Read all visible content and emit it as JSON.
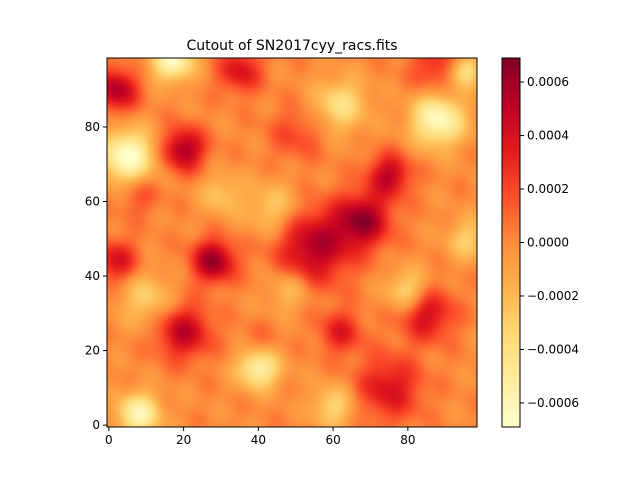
{
  "chart_data": {
    "type": "heatmap",
    "title": "Cutout of SN2017cyy_racs.fits",
    "xlabel": "",
    "ylabel": "",
    "xlim": [
      -0.5,
      98.5
    ],
    "ylim": [
      -0.5,
      98.5
    ],
    "x_ticks": [
      0,
      20,
      40,
      60,
      80
    ],
    "x_tick_labels": [
      "0",
      "20",
      "40",
      "60",
      "80"
    ],
    "y_ticks": [
      0,
      20,
      40,
      60,
      80
    ],
    "y_tick_labels": [
      "0",
      "20",
      "40",
      "60",
      "80"
    ],
    "origin": "lower",
    "colormap": "YlOrRd",
    "colormap_stops": [
      "#ffffcc",
      "#ffeda0",
      "#fed976",
      "#feb24c",
      "#fd8d3c",
      "#fc4e2a",
      "#e31a1c",
      "#bd0026",
      "#800026"
    ],
    "colorbar": {
      "vmin": -0.00069,
      "vmax": 0.00069,
      "ticks": [
        -0.0006,
        -0.0004,
        -0.0002,
        0.0,
        0.0002,
        0.0004,
        0.0006
      ],
      "tick_labels": [
        "−0.0006",
        "−0.0004",
        "−0.0002",
        "0.0000",
        "0.0002",
        "0.0004",
        "0.0006"
      ]
    },
    "grid": false,
    "features": [
      {
        "x": 28,
        "y": 44,
        "amp": 0.00062,
        "sigma": 4
      },
      {
        "x": 55,
        "y": 48,
        "amp": 0.00055,
        "sigma": 7
      },
      {
        "x": 68,
        "y": 55,
        "amp": 0.0006,
        "sigma": 5
      },
      {
        "x": 75,
        "y": 67,
        "amp": 0.0005,
        "sigma": 4
      },
      {
        "x": 20,
        "y": 74,
        "amp": 0.00058,
        "sigma": 4
      },
      {
        "x": 2,
        "y": 90,
        "amp": 0.00055,
        "sigma": 4
      },
      {
        "x": 35,
        "y": 95,
        "amp": 0.0004,
        "sigma": 4
      },
      {
        "x": 88,
        "y": 96,
        "amp": 0.0003,
        "sigma": 5
      },
      {
        "x": 20,
        "y": 25,
        "amp": 0.0005,
        "sigma": 5
      },
      {
        "x": 85,
        "y": 30,
        "amp": 0.00045,
        "sigma": 5
      },
      {
        "x": 75,
        "y": 10,
        "amp": 0.0004,
        "sigma": 6
      },
      {
        "x": 2,
        "y": 44,
        "amp": 0.0004,
        "sigma": 4
      },
      {
        "x": 40,
        "y": 20,
        "amp": 0.00025,
        "sigma": 4
      },
      {
        "x": 62,
        "y": 25,
        "amp": 0.00035,
        "sigma": 4
      },
      {
        "x": 50,
        "y": 78,
        "amp": 0.0002,
        "sigma": 5
      },
      {
        "x": 8,
        "y": 62,
        "amp": 0.0002,
        "sigma": 4
      },
      {
        "x": 5,
        "y": 72,
        "amp": -0.0007,
        "sigma": 5
      },
      {
        "x": 17,
        "y": 98,
        "amp": -0.00065,
        "sigma": 4
      },
      {
        "x": 88,
        "y": 82,
        "amp": -0.00065,
        "sigma": 5
      },
      {
        "x": 40,
        "y": 16,
        "amp": -0.0007,
        "sigma": 4
      },
      {
        "x": 8,
        "y": 3,
        "amp": -0.0006,
        "sigma": 4
      },
      {
        "x": 95,
        "y": 95,
        "amp": -0.0005,
        "sigma": 3
      },
      {
        "x": 62,
        "y": 86,
        "amp": -0.0004,
        "sigma": 5
      },
      {
        "x": 80,
        "y": 36,
        "amp": -0.0004,
        "sigma": 4
      },
      {
        "x": 44,
        "y": 58,
        "amp": -0.0003,
        "sigma": 5
      },
      {
        "x": 96,
        "y": 50,
        "amp": -0.0003,
        "sigma": 4
      },
      {
        "x": 10,
        "y": 34,
        "amp": -0.0003,
        "sigma": 5
      },
      {
        "x": 60,
        "y": 5,
        "amp": -0.00035,
        "sigma": 4
      },
      {
        "x": 30,
        "y": 62,
        "amp": -0.00025,
        "sigma": 4
      },
      {
        "x": 48,
        "y": 36,
        "amp": -0.00025,
        "sigma": 4
      }
    ]
  }
}
